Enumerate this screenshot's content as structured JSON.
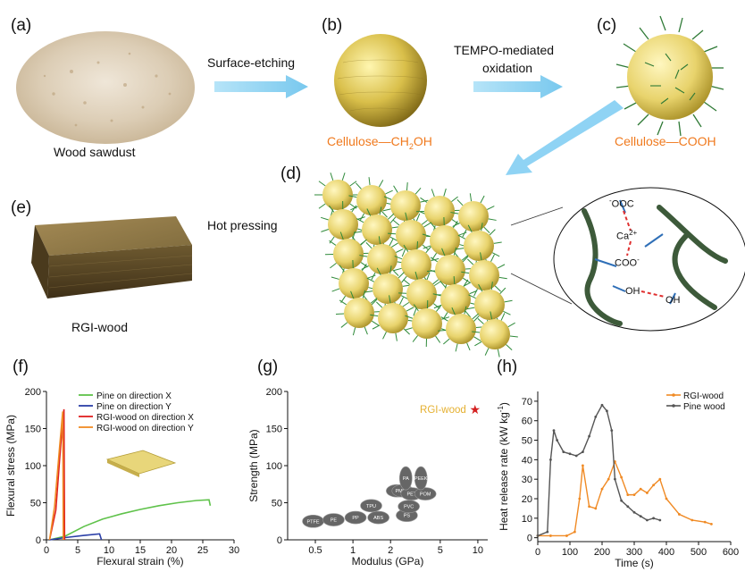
{
  "panels": {
    "a": {
      "label": "(a)",
      "caption": "Wood sawdust"
    },
    "b": {
      "label": "(b)",
      "caption_main": "Cellulose—CH",
      "caption_sub": "2",
      "caption_end": "OH"
    },
    "c": {
      "label": "(c)",
      "caption": "Cellulose—COOH"
    },
    "d": {
      "label": "(d)",
      "inset": {
        "ooc": "OOC",
        "ooc_sup": "-",
        "ca": "Ca",
        "ca_sup": "2+",
        "coo": "COO",
        "coo_sup": "-",
        "oh1": "OH",
        "oh2": "OH"
      }
    },
    "e": {
      "label": "(e)",
      "caption": "RGI-wood"
    },
    "f": {
      "label": "(f)"
    },
    "g": {
      "label": "(g)"
    },
    "h": {
      "label": "(h)"
    }
  },
  "arrows": {
    "etching": "Surface-etching",
    "tempo_1": "TEMPO-mediated",
    "tempo_2": "oxidation",
    "hot_pressing": "Hot pressing"
  },
  "colors": {
    "arrow": "#8fd3f4",
    "accent_orange": "#f07a1e",
    "pine_x": "#5fc24a",
    "pine_y": "#2b3fa8",
    "rgi_x": "#e02020",
    "rgi_y": "#f08a24",
    "bubble": "#666666",
    "rgi_star": "#d42020",
    "rgi_text": "#e5b030"
  },
  "chart_data": [
    {
      "type": "line",
      "panel": "f",
      "xlabel": "Flexural strain (%)",
      "ylabel": "Flexural stress (MPa)",
      "xlim": [
        0,
        30
      ],
      "ylim": [
        0,
        200
      ],
      "xticks": [
        "0",
        "5",
        "10",
        "15",
        "20",
        "25",
        "30"
      ],
      "yticks": [
        "0",
        "50",
        "100",
        "150",
        "200"
      ],
      "legend": "top-right",
      "series": [
        {
          "name": "Pine on direction X",
          "x": [
            0.5,
            3,
            6,
            9,
            12,
            15,
            18,
            21,
            24,
            26,
            26.2
          ],
          "y": [
            0,
            5,
            18,
            28,
            35,
            41,
            46,
            50,
            53,
            54,
            46
          ]
        },
        {
          "name": "Pine on direction Y",
          "x": [
            0.5,
            3,
            6,
            8.5,
            8.8
          ],
          "y": [
            0,
            3,
            6,
            8,
            0
          ]
        },
        {
          "name": "RGI-wood on direction X",
          "x": [
            0.5,
            1.5,
            2.3,
            2.8,
            2.9
          ],
          "y": [
            0,
            40,
            130,
            176,
            0
          ]
        },
        {
          "name": "RGI-wood on direction Y",
          "x": [
            0.5,
            1.3,
            2.1,
            2.6,
            2.7
          ],
          "y": [
            0,
            45,
            125,
            173,
            0
          ]
        }
      ]
    },
    {
      "type": "scatter",
      "panel": "g",
      "xlabel": "Modulus (GPa)",
      "ylabel": "Strength (MPa)",
      "xscale": "log",
      "xlim": [
        0.3,
        12
      ],
      "ylim": [
        0,
        200
      ],
      "xticks": [
        "0.5",
        "1",
        "2",
        "5",
        "10"
      ],
      "yticks": [
        "0",
        "50",
        "100",
        "150",
        "200"
      ],
      "materials": [
        {
          "name": "PTFE",
          "x": 0.48,
          "y": 25
        },
        {
          "name": "PE",
          "x": 0.7,
          "y": 27
        },
        {
          "name": "PP",
          "x": 1.05,
          "y": 30
        },
        {
          "name": "ABS",
          "x": 1.6,
          "y": 30
        },
        {
          "name": "TPU",
          "x": 1.4,
          "y": 46
        },
        {
          "name": "PS",
          "x": 2.7,
          "y": 33
        },
        {
          "name": "PVC",
          "x": 2.8,
          "y": 45
        },
        {
          "name": "PC",
          "x": 2.25,
          "y": 66
        },
        {
          "name": "PMMA",
          "x": 2.5,
          "y": 66
        },
        {
          "name": "PET",
          "x": 2.95,
          "y": 62
        },
        {
          "name": "POM",
          "x": 3.8,
          "y": 62
        },
        {
          "name": "PA",
          "x": 2.65,
          "y": 83
        },
        {
          "name": "PEEK",
          "x": 3.5,
          "y": 83
        }
      ],
      "highlight": {
        "name": "RGI-wood",
        "x": 9.5,
        "y": 176
      }
    },
    {
      "type": "line",
      "panel": "h",
      "xlabel": "Time (s)",
      "ylabel": "Heat release rate (kW kg-1)",
      "ylabel_main": "Heat release rate (kW kg",
      "ylabel_sup": "-1",
      "ylabel_end": ")",
      "xlim": [
        0,
        600
      ],
      "ylim": [
        -2,
        75
      ],
      "xticks": [
        "0",
        "100",
        "200",
        "300",
        "400",
        "500",
        "600"
      ],
      "yticks": [
        "0",
        "10",
        "20",
        "30",
        "40",
        "50",
        "60",
        "70"
      ],
      "legend": "top-right",
      "series": [
        {
          "name": "RGI-wood",
          "x": [
            0,
            40,
            90,
            115,
            130,
            140,
            160,
            180,
            200,
            220,
            240,
            260,
            280,
            300,
            320,
            340,
            360,
            380,
            400,
            440,
            480,
            520,
            540
          ],
          "y": [
            1,
            1,
            1,
            3,
            20,
            37,
            16,
            15,
            25,
            30,
            39,
            31,
            22,
            22,
            25,
            23,
            27,
            30,
            20,
            12,
            9,
            8,
            7
          ]
        },
        {
          "name": "Pine wood",
          "x": [
            0,
            30,
            40,
            50,
            60,
            80,
            100,
            120,
            140,
            160,
            180,
            200,
            215,
            230,
            240,
            260,
            280,
            300,
            320,
            340,
            360,
            380
          ],
          "y": [
            1,
            3,
            40,
            55,
            50,
            44,
            43,
            42,
            44,
            52,
            62,
            68,
            65,
            55,
            30,
            19,
            16,
            13,
            11,
            9,
            10,
            9
          ]
        }
      ]
    }
  ]
}
